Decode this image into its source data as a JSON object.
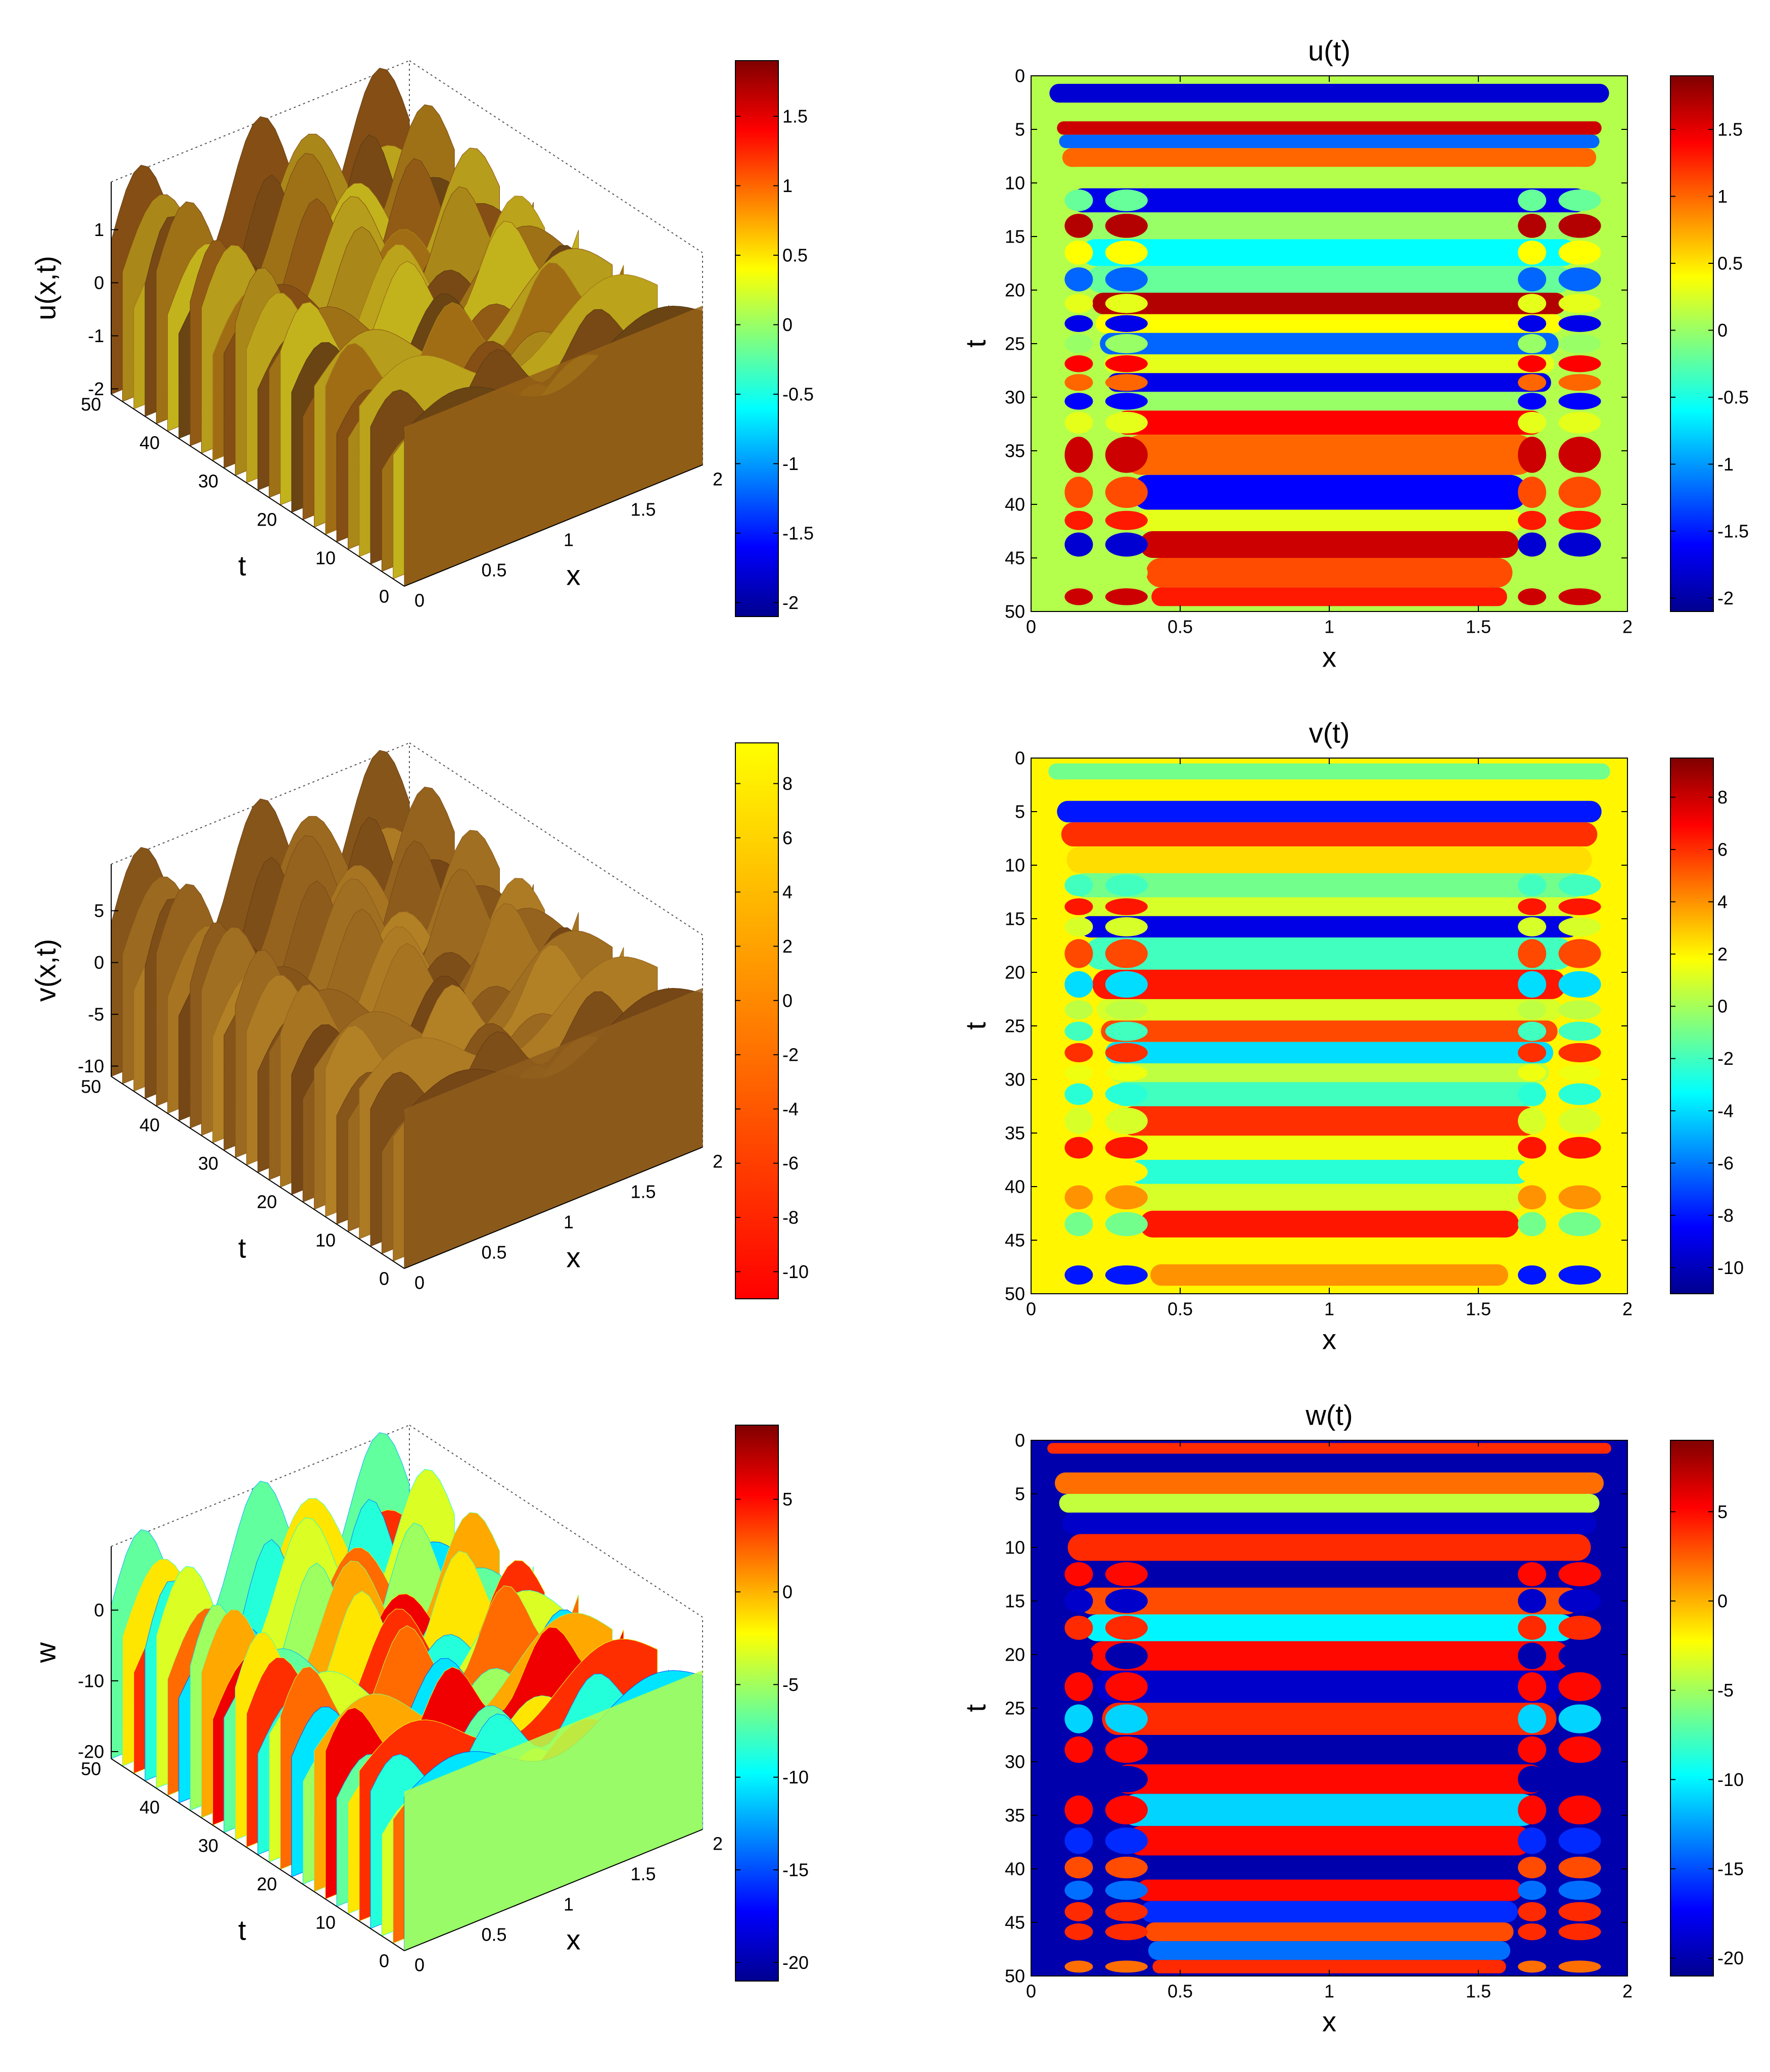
{
  "figure": {
    "panels": [
      {
        "kind": "surface3d",
        "zlabel": "u(x,t)",
        "xlabel": "x",
        "tlabel": "t",
        "zticks": [
          "-2",
          "-1",
          "0",
          "1"
        ],
        "tticks": [
          "0",
          "10",
          "20",
          "30",
          "40",
          "50"
        ],
        "xticks": [
          "0",
          "0.5",
          "1",
          "1.5",
          "2"
        ],
        "colormap": "jet",
        "surface_shading": "brownish-jet",
        "colorbar": {
          "ticks": [
            "-2",
            "-1.5",
            "-1",
            "-0.5",
            "0",
            "0.5",
            "1",
            "1.5"
          ],
          "range": [
            -2.1,
            1.9
          ],
          "colormap": "jet"
        }
      },
      {
        "kind": "heatmap",
        "title": "u(t)",
        "xlabel": "x",
        "ylabel": "t",
        "xticks": [
          "0",
          "0.5",
          "1",
          "1.5",
          "2"
        ],
        "yticks": [
          "0",
          "5",
          "10",
          "15",
          "20",
          "25",
          "30",
          "35",
          "40",
          "45",
          "50"
        ],
        "colorbar": {
          "ticks": [
            "-2",
            "-1.5",
            "-1",
            "-0.5",
            "0",
            "0.5",
            "1",
            "1.5"
          ],
          "range": [
            -2.1,
            1.9
          ],
          "colormap": "jet"
        }
      },
      {
        "kind": "surface3d",
        "zlabel": "v(x,t)",
        "xlabel": "x",
        "tlabel": "t",
        "zticks": [
          "-10",
          "-5",
          "0",
          "5"
        ],
        "tticks": [
          "0",
          "10",
          "20",
          "30",
          "40",
          "50"
        ],
        "xticks": [
          "0",
          "0.5",
          "1",
          "1.5",
          "2"
        ],
        "colormap": "autumn",
        "surface_shading": "brown",
        "colorbar": {
          "ticks": [
            "-10",
            "-8",
            "-6",
            "-4",
            "-2",
            "0",
            "2",
            "4",
            "6",
            "8"
          ],
          "range": [
            -11,
            9.5
          ],
          "colormap": "autumn"
        }
      },
      {
        "kind": "heatmap",
        "title": "v(t)",
        "xlabel": "x",
        "ylabel": "t",
        "xticks": [
          "0",
          "0.5",
          "1",
          "1.5",
          "2"
        ],
        "yticks": [
          "0",
          "5",
          "10",
          "15",
          "20",
          "25",
          "30",
          "35",
          "40",
          "45",
          "50"
        ],
        "colorbar": {
          "ticks": [
            "-10",
            "-8",
            "-6",
            "-4",
            "-2",
            "0",
            "2",
            "4",
            "6",
            "8"
          ],
          "range": [
            -11,
            9.5
          ],
          "colormap": "jet"
        }
      },
      {
        "kind": "surface3d",
        "zlabel": "w",
        "xlabel": "x",
        "tlabel": "t",
        "zticks": [
          "-20",
          "-10",
          "0"
        ],
        "tticks": [
          "0",
          "10",
          "20",
          "30",
          "40",
          "50"
        ],
        "xticks": [
          "0",
          "0.5",
          "1",
          "1.5",
          "2"
        ],
        "colormap": "jet",
        "surface_shading": "jet",
        "colorbar": {
          "ticks": [
            "-20",
            "-15",
            "-10",
            "-5",
            "0",
            "5"
          ],
          "range": [
            -21,
            9
          ],
          "colormap": "jet"
        }
      },
      {
        "kind": "heatmap",
        "title": "w(t)",
        "xlabel": "x",
        "ylabel": "t",
        "xticks": [
          "0",
          "0.5",
          "1",
          "1.5",
          "2"
        ],
        "yticks": [
          "0",
          "5",
          "10",
          "15",
          "20",
          "25",
          "30",
          "35",
          "40",
          "45",
          "50"
        ],
        "colorbar": {
          "ticks": [
            "-20",
            "-15",
            "-10",
            "-5",
            "0",
            "5"
          ],
          "range": [
            -21,
            9
          ],
          "colormap": "jet"
        }
      }
    ]
  },
  "chart_data": [
    {
      "type": "surface",
      "field": "u",
      "x_range": [
        0,
        2
      ],
      "t_range": [
        0,
        50
      ],
      "z_range": [
        -2.1,
        1.9
      ]
    },
    {
      "type": "heatmap",
      "field": "u",
      "title": "u(t)",
      "x_range": [
        0,
        2
      ],
      "t_range": [
        0,
        50
      ],
      "value_range": [
        -2.1,
        1.9
      ],
      "band_rows": [
        {
          "t": 1.5,
          "value": -1.8
        },
        {
          "t": 3.5,
          "value": 0.1
        },
        {
          "t": 5,
          "value": 1.6
        },
        {
          "t": 6,
          "value": -1.2
        },
        {
          "t": 7.5,
          "value": 1.0
        },
        {
          "t": 9.5,
          "value": 0.1
        },
        {
          "t": 11.5,
          "value": -1.7
        },
        {
          "t": 14,
          "value": 0.0
        },
        {
          "t": 16.5,
          "value": -0.6
        },
        {
          "t": 19,
          "value": -0.2
        },
        {
          "t": 21.5,
          "value": 1.7
        },
        {
          "t": 23,
          "value": 0.4
        },
        {
          "t": 25,
          "value": -1.2
        },
        {
          "t": 27,
          "value": 0.3
        },
        {
          "t": 28.5,
          "value": -1.7
        },
        {
          "t": 30.5,
          "value": 0.0
        },
        {
          "t": 32,
          "value": 1.4
        },
        {
          "t": 35,
          "value": 1.0
        },
        {
          "t": 39.5,
          "value": -1.6
        },
        {
          "t": 41.5,
          "value": 0.3
        },
        {
          "t": 43.5,
          "value": 1.6
        },
        {
          "t": 46.5,
          "value": 1.1
        },
        {
          "t": 49,
          "value": 1.3
        }
      ]
    },
    {
      "type": "surface",
      "field": "v",
      "x_range": [
        0,
        2
      ],
      "t_range": [
        0,
        50
      ],
      "z_range": [
        -11,
        9.5
      ]
    },
    {
      "type": "heatmap",
      "field": "v",
      "title": "v(t)",
      "x_range": [
        0,
        2
      ],
      "t_range": [
        0,
        50
      ],
      "value_range": [
        -11,
        9.5
      ],
      "band_rows": [
        {
          "t": 1,
          "value": -1.0
        },
        {
          "t": 3,
          "value": 2.0
        },
        {
          "t": 5,
          "value": -8.0
        },
        {
          "t": 7,
          "value": 6.0
        },
        {
          "t": 9.5,
          "value": 2.5
        },
        {
          "t": 12,
          "value": -1.0
        },
        {
          "t": 14,
          "value": 1.0
        },
        {
          "t": 15.5,
          "value": -9.0
        },
        {
          "t": 18,
          "value": -2.0
        },
        {
          "t": 21.5,
          "value": 6.5
        },
        {
          "t": 23.5,
          "value": 1.0
        },
        {
          "t": 25.5,
          "value": 5.5
        },
        {
          "t": 27.5,
          "value": -4.0
        },
        {
          "t": 29.5,
          "value": 0.5
        },
        {
          "t": 31,
          "value": -2.0
        },
        {
          "t": 34,
          "value": 6.0
        },
        {
          "t": 36.5,
          "value": 1.5
        },
        {
          "t": 38.5,
          "value": -2.5
        },
        {
          "t": 41,
          "value": 1.0
        },
        {
          "t": 43.5,
          "value": 6.5
        },
        {
          "t": 46,
          "value": 2.0
        },
        {
          "t": 48.5,
          "value": 4.0
        }
      ]
    },
    {
      "type": "surface",
      "field": "w",
      "x_range": [
        0,
        2
      ],
      "t_range": [
        0,
        50
      ],
      "z_range": [
        -21,
        9
      ]
    },
    {
      "type": "heatmap",
      "field": "w",
      "title": "w(t)",
      "x_range": [
        0,
        2
      ],
      "t_range": [
        0,
        50
      ],
      "value_range": [
        -21,
        9
      ],
      "band_rows": [
        {
          "t": 0.5,
          "value": 4.0
        },
        {
          "t": 2,
          "value": -20.0
        },
        {
          "t": 4,
          "value": 2.0
        },
        {
          "t": 6,
          "value": -4.0
        },
        {
          "t": 7.5,
          "value": -19.0
        },
        {
          "t": 10,
          "value": 4.0
        },
        {
          "t": 12.5,
          "value": -20.0
        },
        {
          "t": 15,
          "value": 3.0
        },
        {
          "t": 17.5,
          "value": -10.0
        },
        {
          "t": 20,
          "value": 5.0
        },
        {
          "t": 23,
          "value": -19.0
        },
        {
          "t": 26,
          "value": 4.0
        },
        {
          "t": 29,
          "value": -20.0
        },
        {
          "t": 31.5,
          "value": 5.0
        },
        {
          "t": 34.5,
          "value": -11.0
        },
        {
          "t": 37.5,
          "value": 5.0
        },
        {
          "t": 40,
          "value": -20.0
        },
        {
          "t": 42,
          "value": 5.0
        },
        {
          "t": 44,
          "value": -16.0
        },
        {
          "t": 46,
          "value": 3.0
        },
        {
          "t": 47.5,
          "value": -14.0
        },
        {
          "t": 49.5,
          "value": 4.0
        }
      ]
    }
  ]
}
